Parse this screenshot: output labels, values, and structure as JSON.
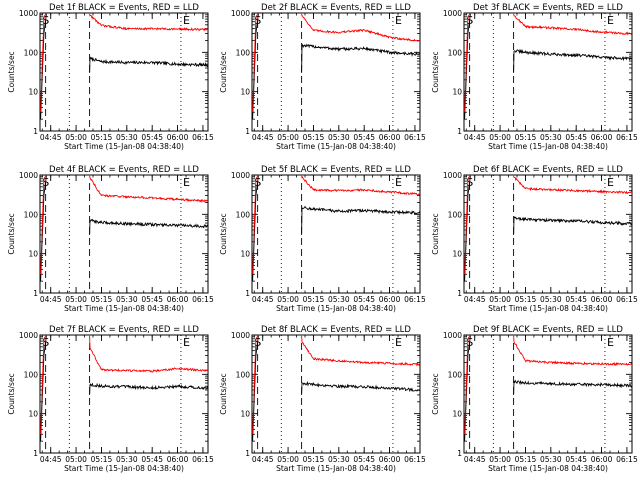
{
  "chart_data": [
    {
      "type": "line",
      "title": "Det 1f BLACK = Events, RED = LLD",
      "xlabel": "Start Time (15-Jan-08 04:38:40)",
      "ylabel": "Counts/sec",
      "yscale": "log",
      "ylim": [
        1,
        1000
      ],
      "xlim": [
        "04:38:40",
        "06:18:00"
      ],
      "x_ticks": [
        "04:45",
        "05:00",
        "05:15",
        "05:30",
        "05:45",
        "06:00",
        "06:15"
      ],
      "y_ticks": [
        "1",
        "10",
        "100",
        "1000"
      ],
      "markers": [
        "S",
        "E"
      ],
      "series": [
        {
          "name": "Events",
          "color": "#000000",
          "x": [
            "05:08",
            "05:15",
            "05:30",
            "05:45",
            "06:00",
            "06:15"
          ],
          "y": [
            70,
            58,
            55,
            55,
            50,
            48
          ]
        },
        {
          "name": "LLD",
          "color": "#ff0000",
          "x": [
            "05:08",
            "05:15",
            "05:30",
            "05:45",
            "06:00",
            "06:15"
          ],
          "y": [
            900,
            480,
            400,
            400,
            390,
            380
          ]
        }
      ]
    },
    {
      "type": "line",
      "title": "Det 2f BLACK = Events, RED = LLD",
      "xlabel": "Start Time (15-Jan-08 04:38:40)",
      "ylabel": "Counts/sec",
      "yscale": "log",
      "ylim": [
        1,
        1000
      ],
      "xlim": [
        "04:38:40",
        "06:18:00"
      ],
      "x_ticks": [
        "04:45",
        "05:00",
        "05:15",
        "05:30",
        "05:45",
        "06:00",
        "06:15"
      ],
      "y_ticks": [
        "1",
        "10",
        "100",
        "1000"
      ],
      "markers": [
        "S",
        "E"
      ],
      "series": [
        {
          "name": "Events",
          "color": "#000000",
          "x": [
            "05:08",
            "05:15",
            "05:30",
            "05:45",
            "06:00",
            "06:15"
          ],
          "y": [
            150,
            140,
            120,
            125,
            100,
            90
          ]
        },
        {
          "name": "LLD",
          "color": "#ff0000",
          "x": [
            "05:08",
            "05:15",
            "05:30",
            "05:45",
            "06:00",
            "06:15"
          ],
          "y": [
            900,
            360,
            320,
            370,
            240,
            200
          ]
        }
      ]
    },
    {
      "type": "line",
      "title": "Det 3f BLACK = Events, RED = LLD",
      "xlabel": "Start Time (15-Jan-08 04:38:40)",
      "ylabel": "Counts/sec",
      "yscale": "log",
      "ylim": [
        1,
        1000
      ],
      "xlim": [
        "04:38:40",
        "06:18:00"
      ],
      "x_ticks": [
        "04:45",
        "05:00",
        "05:15",
        "05:30",
        "05:45",
        "06:00",
        "06:15"
      ],
      "y_ticks": [
        "1",
        "10",
        "100",
        "1000"
      ],
      "markers": [
        "S",
        "E"
      ],
      "series": [
        {
          "name": "Events",
          "color": "#000000",
          "x": [
            "05:08",
            "05:15",
            "05:30",
            "05:45",
            "06:00",
            "06:15"
          ],
          "y": [
            110,
            100,
            90,
            85,
            75,
            70
          ]
        },
        {
          "name": "LLD",
          "color": "#ff0000",
          "x": [
            "05:08",
            "05:15",
            "05:30",
            "05:45",
            "06:00",
            "06:15"
          ],
          "y": [
            900,
            450,
            420,
            380,
            330,
            300
          ]
        }
      ]
    },
    {
      "type": "line",
      "title": "Det 4f BLACK = Events, RED = LLD",
      "xlabel": "Start Time (15-Jan-08 04:38:40)",
      "ylabel": "Counts/sec",
      "yscale": "log",
      "ylim": [
        1,
        1000
      ],
      "xlim": [
        "04:38:40",
        "06:18:00"
      ],
      "x_ticks": [
        "04:45",
        "05:00",
        "05:15",
        "05:30",
        "05:45",
        "06:00",
        "06:15"
      ],
      "y_ticks": [
        "1",
        "10",
        "100",
        "1000"
      ],
      "markers": [
        "S",
        "E"
      ],
      "series": [
        {
          "name": "Events",
          "color": "#000000",
          "x": [
            "05:08",
            "05:15",
            "05:30",
            "05:45",
            "06:00",
            "06:15"
          ],
          "y": [
            70,
            62,
            58,
            55,
            52,
            50
          ]
        },
        {
          "name": "LLD",
          "color": "#ff0000",
          "x": [
            "05:08",
            "05:15",
            "05:30",
            "05:45",
            "06:00",
            "06:15"
          ],
          "y": [
            900,
            300,
            280,
            260,
            240,
            220
          ]
        }
      ]
    },
    {
      "type": "line",
      "title": "Det 5f BLACK = Events, RED = LLD",
      "xlabel": "Start Time (15-Jan-08 04:38:40)",
      "ylabel": "Counts/sec",
      "yscale": "log",
      "ylim": [
        1,
        1000
      ],
      "xlim": [
        "04:38:40",
        "06:18:00"
      ],
      "x_ticks": [
        "04:45",
        "05:00",
        "05:15",
        "05:30",
        "05:45",
        "06:00",
        "06:15"
      ],
      "y_ticks": [
        "1",
        "10",
        "100",
        "1000"
      ],
      "markers": [
        "S",
        "E"
      ],
      "series": [
        {
          "name": "Events",
          "color": "#000000",
          "x": [
            "05:08",
            "05:15",
            "05:30",
            "05:45",
            "06:00",
            "06:15"
          ],
          "y": [
            150,
            135,
            120,
            125,
            115,
            110
          ]
        },
        {
          "name": "LLD",
          "color": "#ff0000",
          "x": [
            "05:08",
            "05:15",
            "05:30",
            "05:45",
            "06:00",
            "06:15"
          ],
          "y": [
            900,
            420,
            400,
            420,
            370,
            330
          ]
        }
      ]
    },
    {
      "type": "line",
      "title": "Det 6f BLACK = Events, RED = LLD",
      "xlabel": "Start Time (15-Jan-08 04:38:40)",
      "ylabel": "Counts/sec",
      "yscale": "log",
      "ylim": [
        1,
        1000
      ],
      "xlim": [
        "04:38:40",
        "06:18:00"
      ],
      "x_ticks": [
        "04:45",
        "05:00",
        "05:15",
        "05:30",
        "05:45",
        "06:00",
        "06:15"
      ],
      "y_ticks": [
        "1",
        "10",
        "100",
        "1000"
      ],
      "markers": [
        "S",
        "E"
      ],
      "series": [
        {
          "name": "Events",
          "color": "#000000",
          "x": [
            "05:08",
            "05:15",
            "05:30",
            "05:45",
            "06:00",
            "06:15"
          ],
          "y": [
            80,
            75,
            70,
            68,
            62,
            58
          ]
        },
        {
          "name": "LLD",
          "color": "#ff0000",
          "x": [
            "05:08",
            "05:15",
            "05:30",
            "05:45",
            "06:00",
            "06:15"
          ],
          "y": [
            900,
            450,
            420,
            400,
            380,
            360
          ]
        }
      ]
    },
    {
      "type": "line",
      "title": "Det 7f BLACK = Events, RED = LLD",
      "xlabel": "Start Time (15-Jan-08 04:38:40)",
      "ylabel": "Counts/sec",
      "yscale": "log",
      "ylim": [
        1,
        1000
      ],
      "xlim": [
        "04:38:40",
        "06:18:00"
      ],
      "x_ticks": [
        "04:45",
        "05:00",
        "05:15",
        "05:30",
        "05:45",
        "06:00",
        "06:15"
      ],
      "y_ticks": [
        "1",
        "10",
        "100",
        "1000"
      ],
      "markers": [
        "S",
        "E"
      ],
      "series": [
        {
          "name": "Events",
          "color": "#000000",
          "x": [
            "05:08",
            "05:15",
            "05:30",
            "05:45",
            "06:00",
            "06:15"
          ],
          "y": [
            55,
            50,
            48,
            45,
            50,
            45
          ]
        },
        {
          "name": "LLD",
          "color": "#ff0000",
          "x": [
            "05:08",
            "05:15",
            "05:30",
            "05:45",
            "06:00",
            "06:15"
          ],
          "y": [
            500,
            130,
            125,
            120,
            140,
            125
          ]
        }
      ]
    },
    {
      "type": "line",
      "title": "Det 8f BLACK = Events, RED = LLD",
      "xlabel": "Start Time (15-Jan-08 04:38:40)",
      "ylabel": "Counts/sec",
      "yscale": "log",
      "ylim": [
        1,
        1000
      ],
      "xlim": [
        "04:38:40",
        "06:18:00"
      ],
      "x_ticks": [
        "04:45",
        "05:00",
        "05:15",
        "05:30",
        "05:45",
        "06:00",
        "06:15"
      ],
      "y_ticks": [
        "1",
        "10",
        "100",
        "1000"
      ],
      "markers": [
        "S",
        "E"
      ],
      "series": [
        {
          "name": "Events",
          "color": "#000000",
          "x": [
            "05:08",
            "05:15",
            "05:30",
            "05:45",
            "06:00",
            "06:15"
          ],
          "y": [
            60,
            55,
            50,
            48,
            45,
            40
          ]
        },
        {
          "name": "LLD",
          "color": "#ff0000",
          "x": [
            "05:08",
            "05:15",
            "05:30",
            "05:45",
            "06:00",
            "06:15"
          ],
          "y": [
            700,
            250,
            220,
            200,
            190,
            180
          ]
        }
      ]
    },
    {
      "type": "line",
      "title": "Det 9f BLACK = Events, RED = LLD",
      "xlabel": "Start Time (15-Jan-08 04:38:40)",
      "ylabel": "Counts/sec",
      "yscale": "log",
      "ylim": [
        1,
        1000
      ],
      "xlim": [
        "04:38:40",
        "06:18:00"
      ],
      "x_ticks": [
        "04:45",
        "05:00",
        "05:15",
        "05:30",
        "05:45",
        "06:00",
        "06:15"
      ],
      "y_ticks": [
        "1",
        "10",
        "100",
        "1000"
      ],
      "markers": [
        "S",
        "E"
      ],
      "series": [
        {
          "name": "Events",
          "color": "#000000",
          "x": [
            "05:08",
            "05:15",
            "05:30",
            "05:45",
            "06:00",
            "06:15"
          ],
          "y": [
            65,
            60,
            58,
            55,
            55,
            52
          ]
        },
        {
          "name": "LLD",
          "color": "#ff0000",
          "x": [
            "05:08",
            "05:15",
            "05:30",
            "05:45",
            "06:00",
            "06:15"
          ],
          "y": [
            700,
            220,
            200,
            190,
            185,
            180
          ]
        }
      ]
    }
  ]
}
